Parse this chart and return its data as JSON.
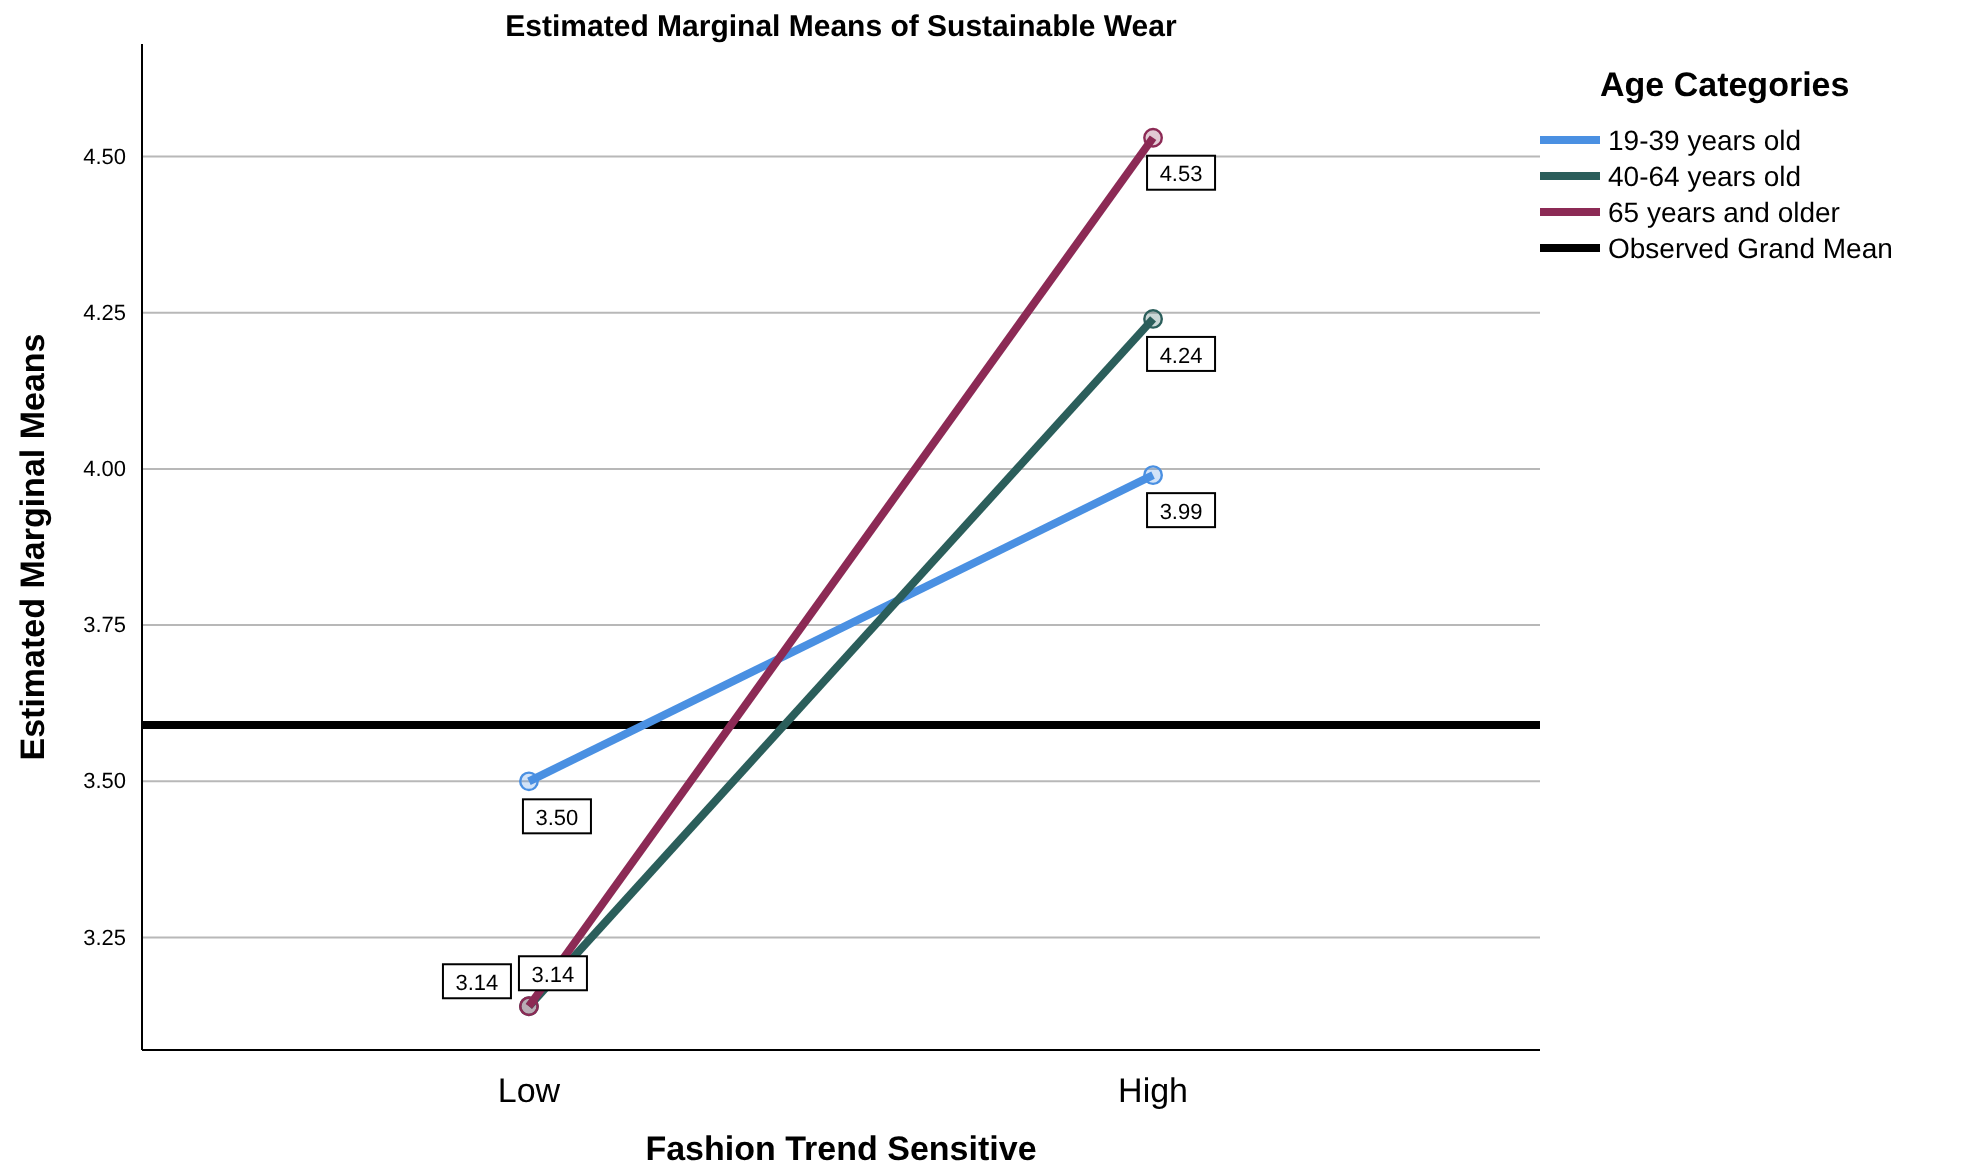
{
  "chart_data": {
    "type": "line",
    "title": "Estimated Marginal Means of Sustainable Wear",
    "xlabel": "Fashion Trend Sensitive",
    "ylabel": "Estimated Marginal Means",
    "legend_title": "Age Categories",
    "categories": [
      "Low",
      "High"
    ],
    "series": [
      {
        "name": "19-39 years old",
        "color": "#4a90e2",
        "values": [
          3.5,
          3.99
        ],
        "value_labels": [
          "3.50",
          "3.99"
        ]
      },
      {
        "name": "40-64 years old",
        "color": "#2b5e5b",
        "values": [
          3.14,
          4.24
        ],
        "value_labels": [
          "3.14",
          "4.24"
        ]
      },
      {
        "name": "65 years and older",
        "color": "#8c2a55",
        "values": [
          3.14,
          4.53
        ],
        "value_labels": [
          "3.14",
          "4.53"
        ]
      }
    ],
    "ref_lines": [
      {
        "axis": "y",
        "value": 3.59,
        "label": "Observed Grand Mean",
        "color": "#000000"
      }
    ],
    "ylim": [
      3.07,
      4.68
    ],
    "yticks": [
      {
        "value": 3.25,
        "label": "3.25"
      },
      {
        "value": 3.5,
        "label": "3.50"
      },
      {
        "value": 3.75,
        "label": "3.75"
      },
      {
        "value": 4,
        "label": "4.00"
      },
      {
        "value": 4.25,
        "label": "4.25"
      },
      {
        "value": 4.5,
        "label": "4.50"
      }
    ],
    "grid": "y",
    "legend": "right",
    "marker": "circle",
    "line_style": "solid"
  }
}
